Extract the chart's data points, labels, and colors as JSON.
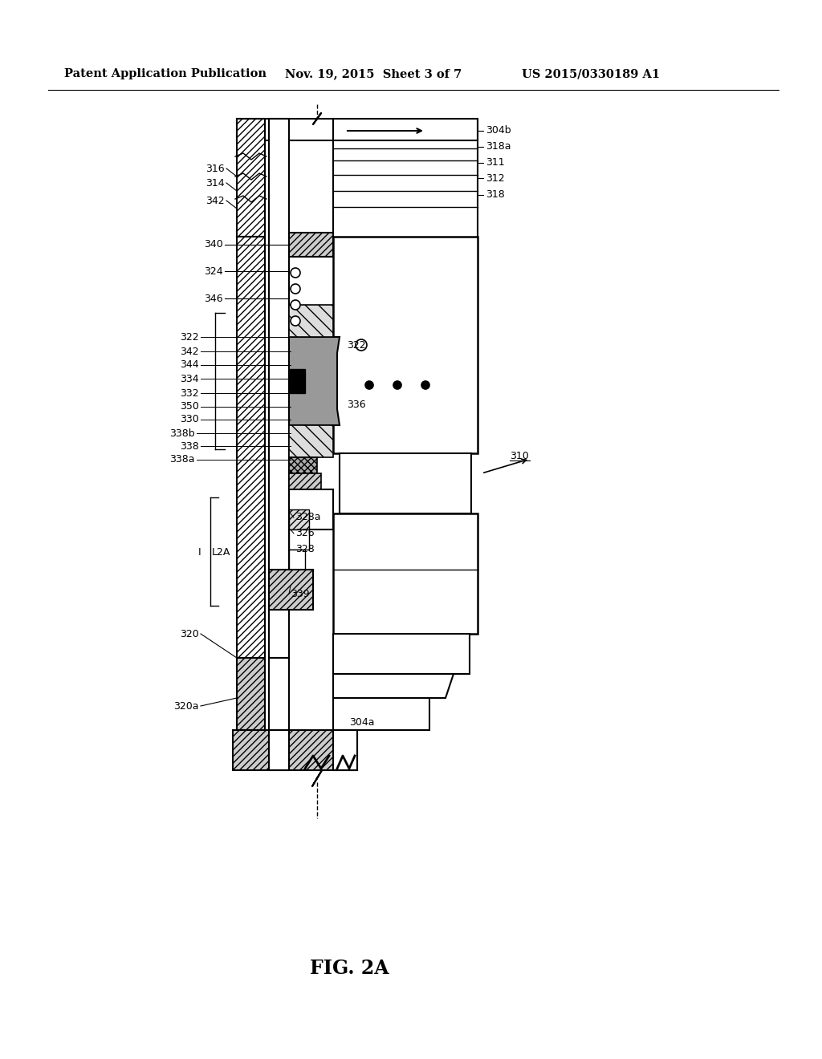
{
  "title_left": "Patent Application Publication",
  "title_mid": "Nov. 19, 2015  Sheet 3 of 7",
  "title_right": "US 2015/0330189 A1",
  "fig_label": "FIG. 2A",
  "bg_color": "#ffffff",
  "line_color": "#000000"
}
